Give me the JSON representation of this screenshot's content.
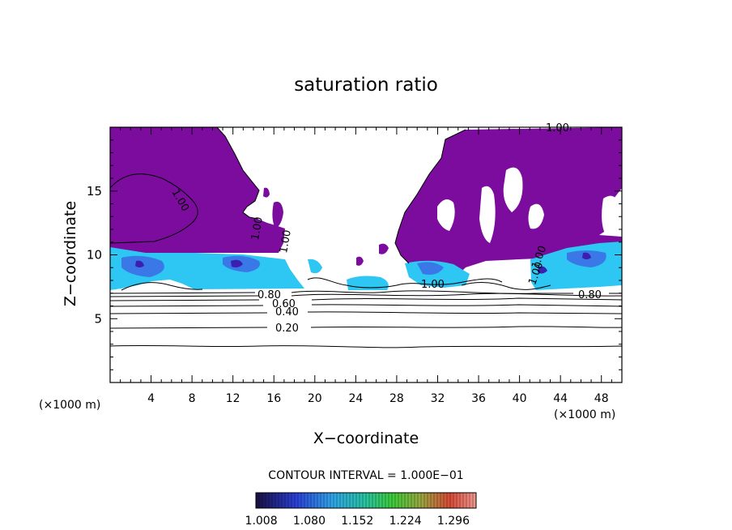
{
  "chart_data": {
    "type": "heatmap",
    "title": "saturation ratio",
    "xlabel": "X−coordinate",
    "ylabel": "Z−coordinate",
    "x_unit_left": "(×1000 m)",
    "x_unit_right": "(×1000 m)",
    "xlim": [
      0,
      50
    ],
    "ylim": [
      0,
      20
    ],
    "x_ticks": [
      4,
      8,
      12,
      16,
      20,
      24,
      28,
      32,
      36,
      40,
      44,
      48
    ],
    "y_ticks": [
      5,
      10,
      15
    ],
    "contour_interval_text": "CONTOUR INTERVAL = 1.000E−01",
    "colorbar": {
      "labels": [
        "1.008",
        "1.080",
        "1.152",
        "1.224",
        "1.296"
      ],
      "range": [
        1.0,
        1.33
      ]
    },
    "contour_labels": [
      "1.00",
      "1.00",
      "1.00",
      "1.00",
      "1.00",
      "1.00",
      "1.00",
      "0.80",
      "0.60",
      "0.40",
      "0.20",
      "0.80"
    ],
    "contour_lines": [
      {
        "level": 0.2,
        "z": 4.3
      },
      {
        "level": 0.3,
        "z": 2.9
      },
      {
        "level": 0.4,
        "z": 5.6
      },
      {
        "level": 0.5,
        "z": 6.0
      },
      {
        "level": 0.6,
        "z": 6.35
      },
      {
        "level": 0.7,
        "z": 6.6
      },
      {
        "level": 0.8,
        "z": 6.85
      }
    ],
    "colors": {
      "supersaturated": "#7b0c9e",
      "high_supersaturation_light": "#22c9f0",
      "high_supersaturation_mid": "#3a78e8",
      "high_supersaturation_dark": "#3a1fb0"
    }
  }
}
